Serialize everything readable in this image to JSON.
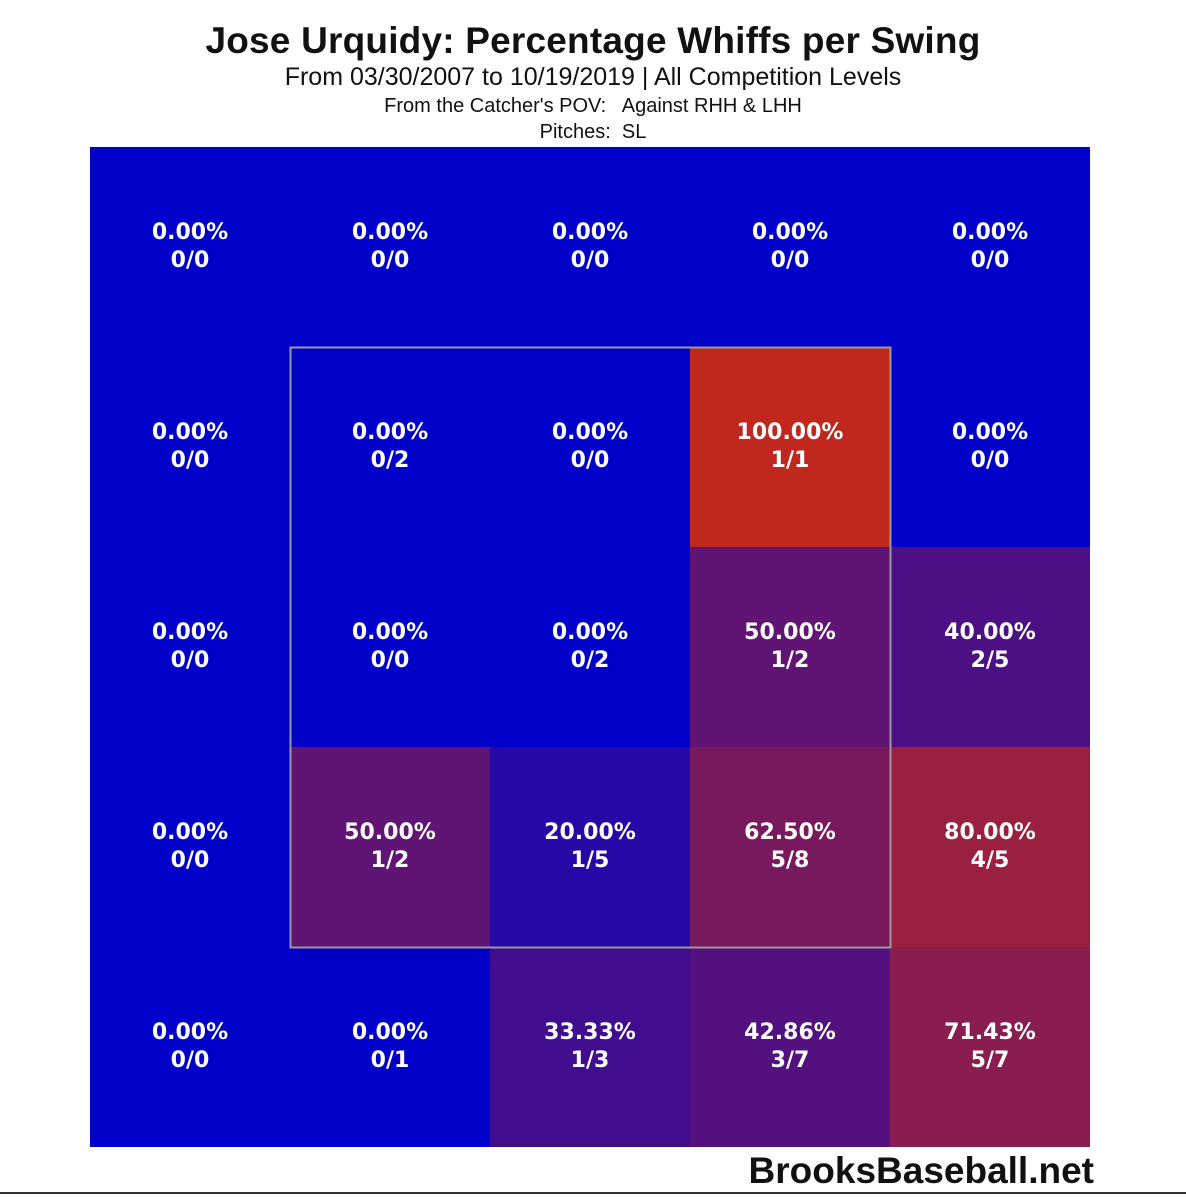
{
  "chart_data": {
    "type": "heatmap",
    "title": "Jose Urquidy: Percentage Whiffs per Swing",
    "subtitle": "From 03/30/2007 to 10/19/2019 | All Competition Levels",
    "subtitle2": "From the Catcher's POV:   Against RHH & LHH",
    "subtitle3": "Pitches:  SL",
    "xlabel": "",
    "ylabel": "",
    "grid": {
      "rows": 5,
      "cols": 5,
      "strike_zone": {
        "row_start": 1,
        "row_end": 3,
        "col_start": 1,
        "col_end": 3
      }
    },
    "cells": [
      [
        {
          "pct": "0.00%",
          "count": "0/0",
          "value": 0
        },
        {
          "pct": "0.00%",
          "count": "0/0",
          "value": 0
        },
        {
          "pct": "0.00%",
          "count": "0/0",
          "value": 0
        },
        {
          "pct": "0.00%",
          "count": "0/0",
          "value": 0
        },
        {
          "pct": "0.00%",
          "count": "0/0",
          "value": 0
        }
      ],
      [
        {
          "pct": "0.00%",
          "count": "0/0",
          "value": 0
        },
        {
          "pct": "0.00%",
          "count": "0/2",
          "value": 0
        },
        {
          "pct": "0.00%",
          "count": "0/0",
          "value": 0
        },
        {
          "pct": "100.00%",
          "count": "1/1",
          "value": 100
        },
        {
          "pct": "0.00%",
          "count": "0/0",
          "value": 0
        }
      ],
      [
        {
          "pct": "0.00%",
          "count": "0/0",
          "value": 0
        },
        {
          "pct": "0.00%",
          "count": "0/0",
          "value": 0
        },
        {
          "pct": "0.00%",
          "count": "0/2",
          "value": 0
        },
        {
          "pct": "50.00%",
          "count": "1/2",
          "value": 50
        },
        {
          "pct": "40.00%",
          "count": "2/5",
          "value": 40
        }
      ],
      [
        {
          "pct": "0.00%",
          "count": "0/0",
          "value": 0
        },
        {
          "pct": "50.00%",
          "count": "1/2",
          "value": 50
        },
        {
          "pct": "20.00%",
          "count": "1/5",
          "value": 20
        },
        {
          "pct": "62.50%",
          "count": "5/8",
          "value": 62.5
        },
        {
          "pct": "80.00%",
          "count": "4/5",
          "value": 80
        }
      ],
      [
        {
          "pct": "0.00%",
          "count": "0/0",
          "value": 0
        },
        {
          "pct": "0.00%",
          "count": "0/1",
          "value": 0
        },
        {
          "pct": "33.33%",
          "count": "1/3",
          "value": 33.33
        },
        {
          "pct": "42.86%",
          "count": "3/7",
          "value": 42.86
        },
        {
          "pct": "71.43%",
          "count": "5/7",
          "value": 71.43
        }
      ]
    ],
    "colors": {
      "low": "#0000c8",
      "high": "#c0281e",
      "cell_text": "#ffffff",
      "zone_border": "#9a9a9a"
    }
  },
  "watermark": "BrooksBaseball.net"
}
